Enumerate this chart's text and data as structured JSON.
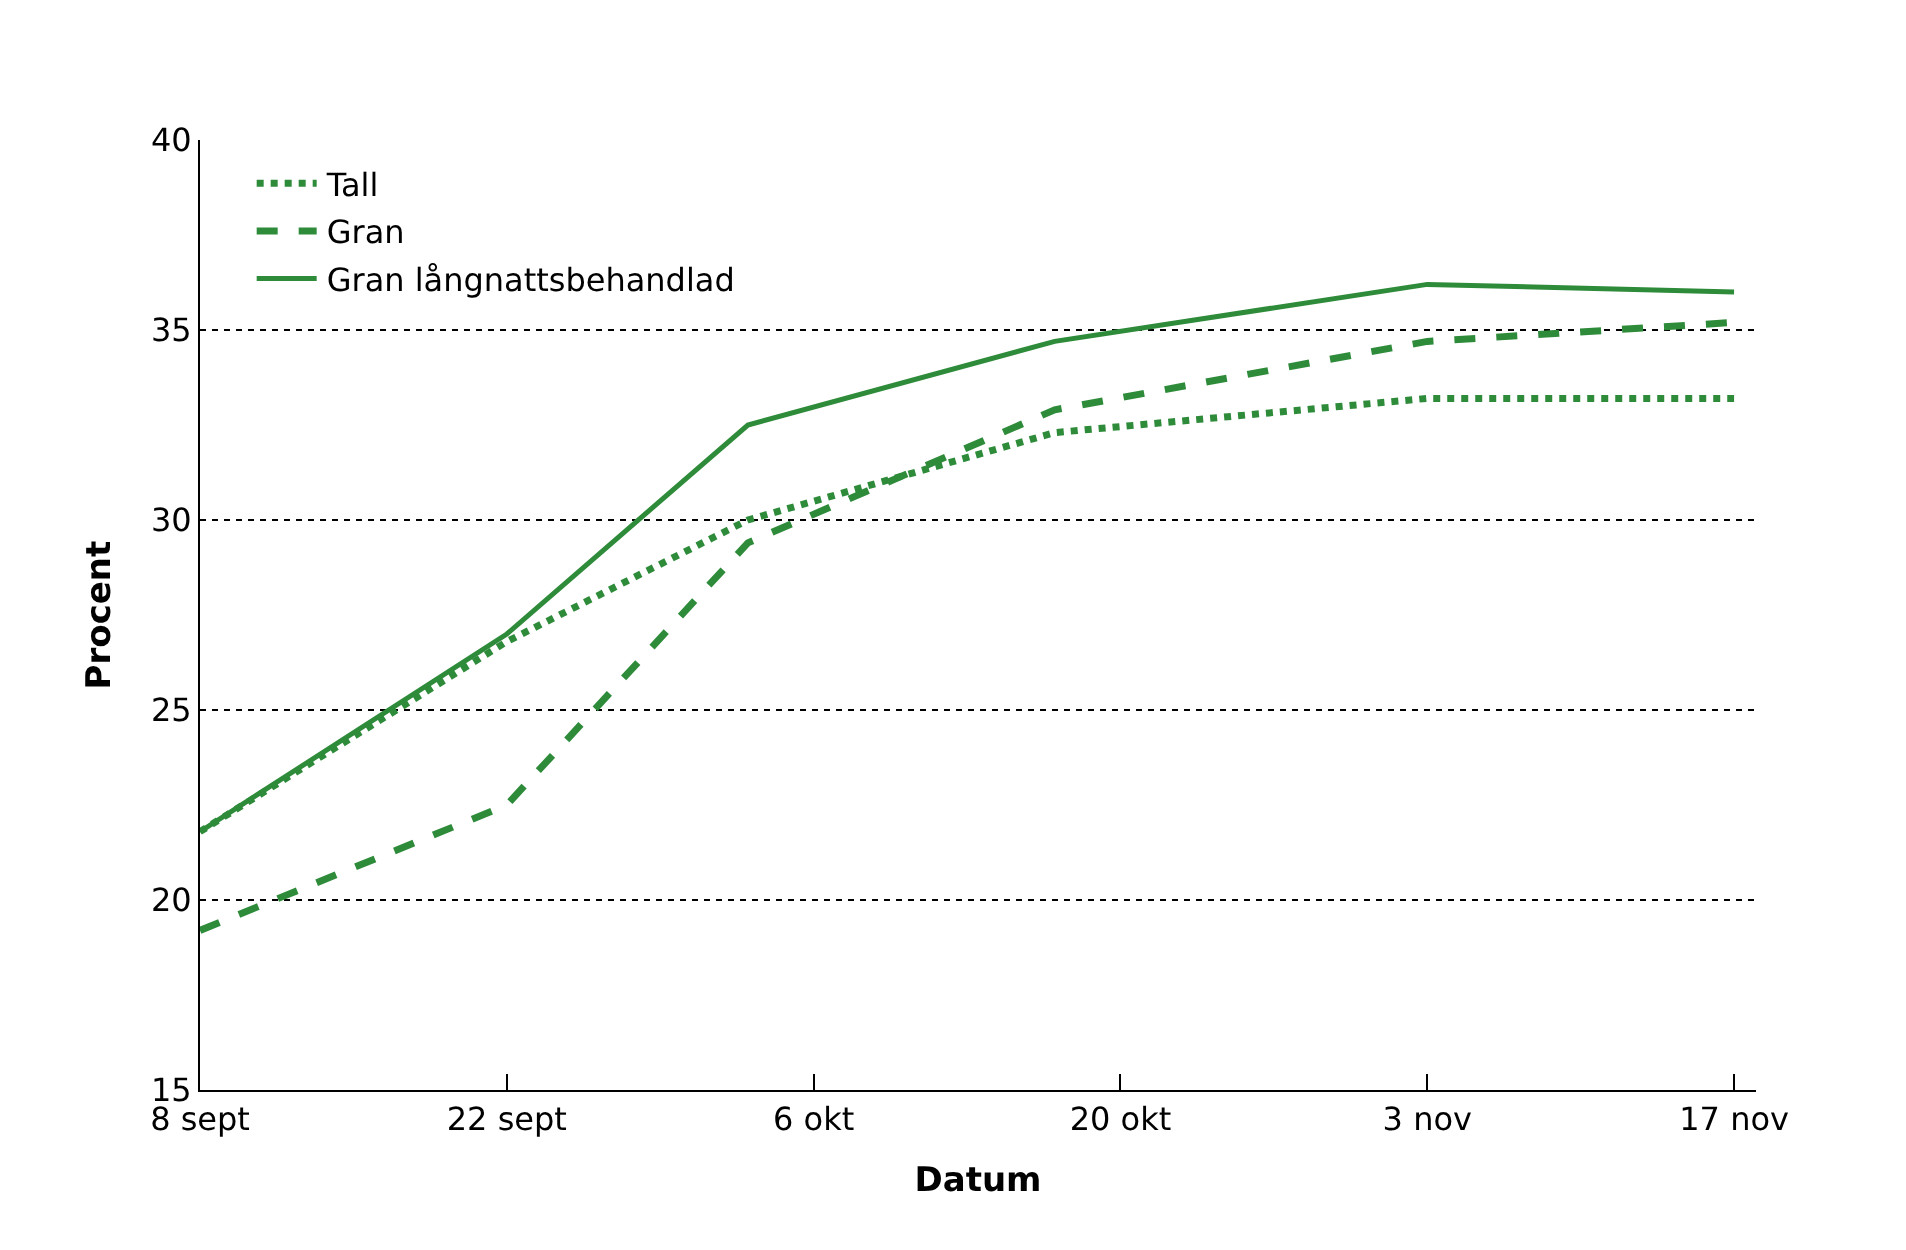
{
  "chart_data": {
    "type": "line",
    "xlabel": "Datum",
    "ylabel": "Procent",
    "x": [
      "--09-08",
      "--09-22",
      "--10-03",
      "--10-17",
      "--11-03",
      "--11-17"
    ],
    "series": [
      {
        "name": "Tall",
        "color": "#2e8b3a",
        "line_style": "dotted",
        "values": [
          21.8,
          26.8,
          30.0,
          32.3,
          33.2,
          33.2
        ]
      },
      {
        "name": "Gran",
        "color": "#2e8b3a",
        "line_style": "dashed",
        "values": [
          19.2,
          22.5,
          29.4,
          32.9,
          34.7,
          35.2
        ]
      },
      {
        "name": "Gran långnattsbehandlad",
        "color": "#2e8b3a",
        "line_style": "solid",
        "values": [
          21.8,
          27.0,
          32.5,
          34.7,
          36.2,
          36.0
        ]
      }
    ],
    "xlim": [
      "--09-08",
      "--11-18"
    ],
    "xticks": [
      {
        "value": "--09-08",
        "label": "8 sept"
      },
      {
        "value": "--09-22",
        "label": "22 sept"
      },
      {
        "value": "--10-06",
        "label": "6 okt"
      },
      {
        "value": "--10-20",
        "label": "20 okt"
      },
      {
        "value": "--11-03",
        "label": "3 nov"
      },
      {
        "value": "--11-17",
        "label": "17 nov"
      }
    ],
    "ylim": [
      15,
      40
    ],
    "yticks": [
      15,
      20,
      25,
      30,
      35,
      40
    ],
    "grid": "y",
    "legend": "top left",
    "marker": "none"
  }
}
